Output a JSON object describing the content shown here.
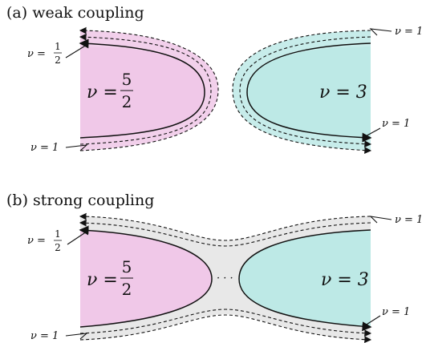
{
  "panel_a": {
    "title": "(a) weak coupling",
    "left_region": {
      "nu_prefix": "ν =",
      "num": "5",
      "den": "2"
    },
    "right_region": "ν = 3",
    "edge_labels": {
      "half_prefix": "ν =",
      "half_num": "1",
      "half_den": "2",
      "left_one": "ν = 1",
      "right_top": "ν = 1",
      "right_bottom": "ν = 1"
    }
  },
  "panel_b": {
    "title": "(b) strong coupling",
    "left_region": {
      "nu_prefix": "ν =",
      "num": "5",
      "den": "2"
    },
    "right_region": "ν = 3",
    "dots": "· · ·",
    "edge_labels": {
      "half_prefix": "ν =",
      "half_num": "1",
      "half_den": "2",
      "left_one": "ν = 1",
      "right_top": "ν = 1",
      "right_bottom": "ν = 1"
    }
  },
  "colors": {
    "pink": "#f0c8e8",
    "cyan": "#bde9e6",
    "gray": "#e8e8e8"
  }
}
